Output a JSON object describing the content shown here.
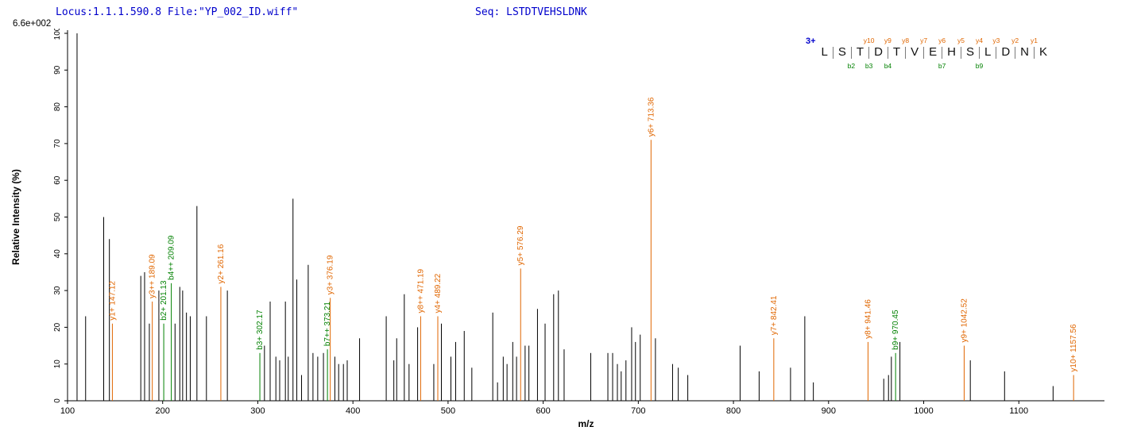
{
  "header": {
    "locus_file": "Locus:1.1.1.590.8 File:\"YP_002_ID.wiff\"",
    "seq": "Seq: LSTDTVEHSLDNK",
    "max_intensity": "6.6e+002"
  },
  "peptide_panel": {
    "charge": "3+",
    "residues": [
      "L",
      "S",
      "T",
      "D",
      "T",
      "V",
      "E",
      "H",
      "S",
      "L",
      "D",
      "N",
      "K"
    ],
    "separators": [
      {
        "after": 1
      },
      {
        "after": 2,
        "b": "b2"
      },
      {
        "after": 3,
        "y": "y10",
        "b": "b3"
      },
      {
        "after": 4,
        "y": "y9",
        "b": "b4"
      },
      {
        "after": 5,
        "y": "y8"
      },
      {
        "after": 6,
        "y": "y7"
      },
      {
        "after": 7,
        "y": "y6",
        "b": "b7"
      },
      {
        "after": 8,
        "y": "y5"
      },
      {
        "after": 9,
        "y": "y4",
        "b": "b9"
      },
      {
        "after": 10,
        "y": "y3"
      },
      {
        "after": 11,
        "y": "y2"
      },
      {
        "after": 12,
        "y": "y1"
      }
    ]
  },
  "colors": {
    "header_blue": "#0000cc",
    "y_ion": "#e06600",
    "b_ion": "#008000",
    "peak": "#000000"
  },
  "chart_data": {
    "type": "bar",
    "subtype": "mass-spectrum",
    "xlabel": "m/z",
    "ylabel": "Relative Intensity (%)",
    "xlim": [
      100,
      1190
    ],
    "ylim": [
      0,
      100
    ],
    "x_ticks": [
      100,
      200,
      300,
      400,
      500,
      600,
      700,
      800,
      900,
      1000,
      1100
    ],
    "y_ticks": [
      0,
      10,
      20,
      30,
      40,
      50,
      60,
      70,
      80,
      90,
      100
    ],
    "grid": false,
    "peaks": [
      [
        110,
        100
      ],
      [
        119,
        23
      ],
      [
        138,
        50
      ],
      [
        144,
        44
      ],
      [
        177,
        34
      ],
      [
        181,
        35
      ],
      [
        186,
        21
      ],
      [
        196,
        30
      ],
      [
        213,
        21
      ],
      [
        218,
        31
      ],
      [
        221,
        30
      ],
      [
        225,
        24
      ],
      [
        229,
        23
      ],
      [
        236,
        53
      ],
      [
        246,
        23
      ],
      [
        268,
        30
      ],
      [
        307,
        15
      ],
      [
        313,
        27
      ],
      [
        319,
        12
      ],
      [
        323,
        11
      ],
      [
        329,
        27
      ],
      [
        332,
        12
      ],
      [
        337,
        55
      ],
      [
        341,
        33
      ],
      [
        346,
        7
      ],
      [
        353,
        37
      ],
      [
        358,
        13
      ],
      [
        363,
        12
      ],
      [
        369,
        13
      ],
      [
        381,
        12
      ],
      [
        385,
        10
      ],
      [
        390,
        10
      ],
      [
        394,
        11
      ],
      [
        407,
        17
      ],
      [
        435,
        23
      ],
      [
        443,
        11
      ],
      [
        446,
        17
      ],
      [
        454,
        29
      ],
      [
        459,
        10
      ],
      [
        468,
        20
      ],
      [
        485,
        10
      ],
      [
        493,
        21
      ],
      [
        503,
        12
      ],
      [
        508,
        16
      ],
      [
        517,
        19
      ],
      [
        525,
        9
      ],
      [
        547,
        24
      ],
      [
        552,
        5
      ],
      [
        558,
        12
      ],
      [
        562,
        10
      ],
      [
        568,
        16
      ],
      [
        572,
        12
      ],
      [
        581,
        15
      ],
      [
        585,
        15
      ],
      [
        594,
        25
      ],
      [
        602,
        21
      ],
      [
        611,
        29
      ],
      [
        616,
        30
      ],
      [
        622,
        14
      ],
      [
        650,
        13
      ],
      [
        668,
        13
      ],
      [
        673,
        13
      ],
      [
        678,
        10
      ],
      [
        682,
        8
      ],
      [
        687,
        11
      ],
      [
        693,
        20
      ],
      [
        697,
        16
      ],
      [
        702,
        18
      ],
      [
        718,
        17
      ],
      [
        736,
        10
      ],
      [
        742,
        9
      ],
      [
        752,
        7
      ],
      [
        807,
        15
      ],
      [
        827,
        8
      ],
      [
        860,
        9
      ],
      [
        875,
        23
      ],
      [
        884,
        5
      ],
      [
        958,
        6
      ],
      [
        963,
        7
      ],
      [
        966,
        12
      ],
      [
        975,
        16
      ],
      [
        1049,
        11
      ],
      [
        1085,
        8
      ],
      [
        1136,
        4
      ]
    ],
    "annotated_peaks": [
      {
        "mz": 147.12,
        "intensity": 21,
        "label": "y1+ 147.12",
        "series": "y"
      },
      {
        "mz": 189.09,
        "intensity": 27,
        "label": "y3++ 189.09",
        "series": "y"
      },
      {
        "mz": 201.13,
        "intensity": 21,
        "label": "b2+ 201.13",
        "series": "b"
      },
      {
        "mz": 209.09,
        "intensity": 32,
        "label": "b4++ 209.09",
        "series": "b"
      },
      {
        "mz": 261.16,
        "intensity": 31,
        "label": "y2+ 261.16",
        "series": "y"
      },
      {
        "mz": 302.17,
        "intensity": 13,
        "label": "b3+ 302.17",
        "series": "b"
      },
      {
        "mz": 373.21,
        "intensity": 14,
        "label": "b7++ 373.21",
        "series": "b"
      },
      {
        "mz": 376.19,
        "intensity": 28,
        "label": "y3+ 376.19",
        "series": "y"
      },
      {
        "mz": 471.19,
        "intensity": 23,
        "label": "y8++ 471.19",
        "series": "y"
      },
      {
        "mz": 489.22,
        "intensity": 23,
        "label": "y4+ 489.22",
        "series": "y"
      },
      {
        "mz": 576.29,
        "intensity": 36,
        "label": "y5+ 576.29",
        "series": "y"
      },
      {
        "mz": 713.36,
        "intensity": 71,
        "label": "y6+ 713.36",
        "series": "y"
      },
      {
        "mz": 842.41,
        "intensity": 17,
        "label": "y7+ 842.41",
        "series": "y"
      },
      {
        "mz": 941.46,
        "intensity": 16,
        "label": "y8+ 941.46",
        "series": "y"
      },
      {
        "mz": 970.45,
        "intensity": 13,
        "label": "b9+ 970.45",
        "series": "b"
      },
      {
        "mz": 1042.52,
        "intensity": 15,
        "label": "y9+ 1042.52",
        "series": "y"
      },
      {
        "mz": 1157.56,
        "intensity": 7,
        "label": "y10+ 1157.56",
        "series": "y"
      }
    ]
  }
}
